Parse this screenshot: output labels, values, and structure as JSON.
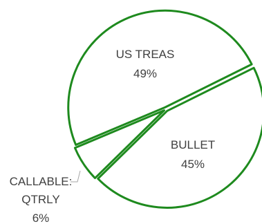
{
  "chart_data": {
    "type": "pie",
    "title": "",
    "slices": [
      {
        "label": "US TREAS",
        "value": 49,
        "value_label": "49%"
      },
      {
        "label": "BULLET",
        "value": 45,
        "value_label": "45%"
      },
      {
        "label": "CALLABLE: QTRLY",
        "label_lines": [
          "CALLABLE:",
          "QTRLY"
        ],
        "value": 6,
        "value_label": "6%"
      }
    ],
    "colors": {
      "fill": "#ffffff",
      "outline": "#1e8a1e",
      "label": "#404040",
      "leader": "#a6a6a6"
    },
    "legend": "none"
  }
}
